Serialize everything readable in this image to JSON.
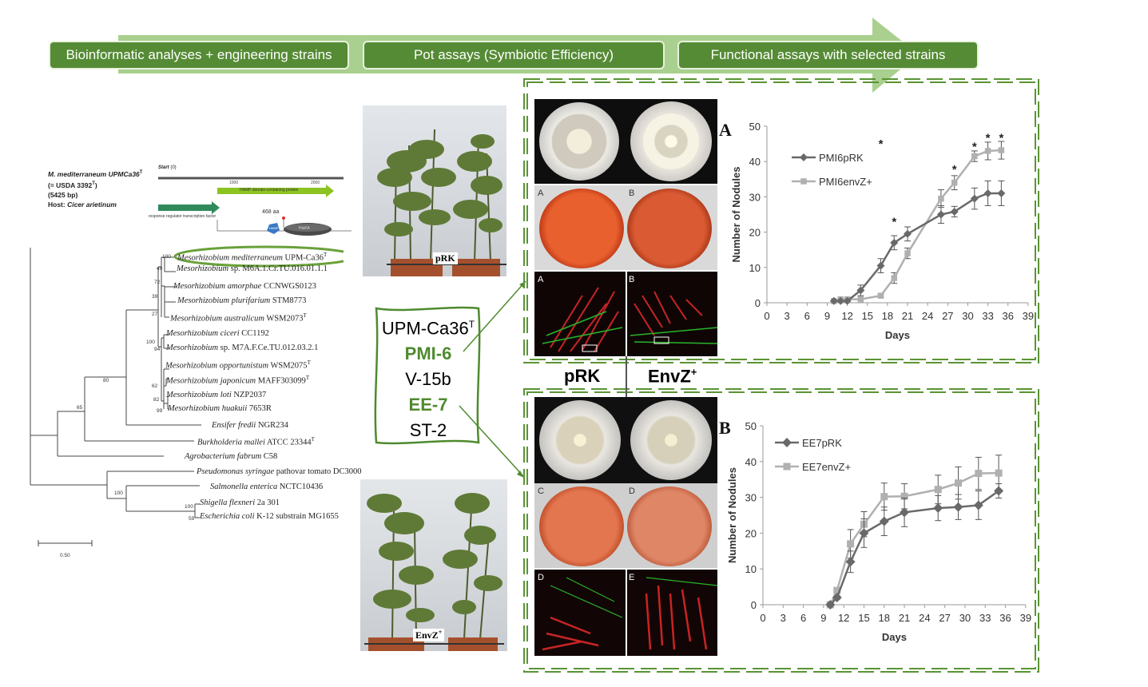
{
  "banner": {
    "steps": [
      "Bioinformatic analyses + engineering strains",
      "Pot assays (Symbiotic Efficiency)",
      "Functional assays with selected strains"
    ],
    "arrow_color": "#a9d08e",
    "box_color": "#558b35"
  },
  "genome_info": {
    "organism": "M. mediterraneum UPMCa36",
    "organism_sup": "T",
    "usda": "(= USDA 3392",
    "usda_sup": "T",
    "usda_end": ")",
    "size": "(5425 bp)",
    "host_label": "Host: ",
    "host": "Cicer arietinum",
    "start_label": "Start",
    "start_value": "(0)",
    "tick_1000": "1000",
    "tick_2000": "2000",
    "hamp_label": "HAMP domain-containing protein",
    "rr_label": "response regulator transcription factor",
    "aa_label": "468 aa",
    "hamp_box": "HAMP",
    "hisk_label": "HisKA"
  },
  "tree": {
    "taxa": [
      {
        "genus": "Mesorhizobium",
        "rest": "mediterraneum",
        "suffix": "UPM-Ca36",
        "sup": "T"
      },
      {
        "genus": "Mesorhizobium",
        "rest": "",
        "suffix": "sp. M6A.1.Cr.TU.016.01.1.1",
        "sup": ""
      },
      {
        "genus": "Mesorhizobium",
        "rest": "amorphae",
        "suffix": "CCNWGS0123",
        "sup": ""
      },
      {
        "genus": "Mesorhizobium",
        "rest": "plurifarium",
        "suffix": "STM8773",
        "sup": ""
      },
      {
        "genus": "Mesorhizobium",
        "rest": "australicum",
        "suffix": "WSM2073",
        "sup": "T"
      },
      {
        "genus": "Mesorhizobium",
        "rest": "ciceri",
        "suffix": "CC1192",
        "sup": ""
      },
      {
        "genus": "Mesorhizobium",
        "rest": "",
        "suffix": "sp. M7A.F.Ce.TU.012.03.2.1",
        "sup": ""
      },
      {
        "genus": "Mesorhizobium",
        "rest": "opportunistum",
        "suffix": "WSM2075",
        "sup": "T"
      },
      {
        "genus": "Mesorhizobium",
        "rest": "japonicum",
        "suffix": "MAFF303099",
        "sup": "T"
      },
      {
        "genus": "Mesorhizobium",
        "rest": "loti",
        "suffix": "NZP2037",
        "sup": ""
      },
      {
        "genus": "Mesorhizobium",
        "rest": "huakuii",
        "suffix": "7653R",
        "sup": ""
      },
      {
        "genus": "Ensifer",
        "rest": "fredii",
        "suffix": "NGR234",
        "sup": ""
      },
      {
        "genus": "Burkholderia",
        "rest": "mallei",
        "suffix": "ATCC 23344",
        "sup": "T"
      },
      {
        "genus": "Agrobacterium",
        "rest": "fabrum",
        "suffix": "C58",
        "sup": ""
      },
      {
        "genus": "Pseudomonas",
        "rest": "syringae",
        "suffix": "pathovar tomato DC3000",
        "sup": ""
      },
      {
        "genus": "Salmonella",
        "rest": "enterica",
        "suffix": "NCTC10436",
        "sup": ""
      },
      {
        "genus": "Shigella",
        "rest": "flexneri",
        "suffix": "2a 301",
        "sup": ""
      },
      {
        "genus": "Escherichia",
        "rest": "coli",
        "suffix": "K-12 substrain MG1655",
        "sup": ""
      }
    ],
    "bootstraps": [
      "100",
      "49",
      "72",
      "39",
      "27",
      "100",
      "94",
      "62",
      "82",
      "99",
      "80",
      "65",
      "100",
      "100",
      "59"
    ],
    "scale": "0.50"
  },
  "pot_photos": {
    "top_label": "pRK",
    "bottom_label": "EnvZ",
    "bottom_sup": "+"
  },
  "strains": {
    "items": [
      {
        "name": "UPM-Ca36",
        "sup": "T",
        "highlight": false
      },
      {
        "name": "PMI-6",
        "sup": "",
        "highlight": true
      },
      {
        "name": "V-15b",
        "sup": "",
        "highlight": false
      },
      {
        "name": "EE-7",
        "sup": "",
        "highlight": true
      },
      {
        "name": "ST-2",
        "sup": "",
        "highlight": false
      }
    ],
    "highlight_color": "#4f8a2f"
  },
  "plates": {
    "col_left": "pRK",
    "col_right": "EnvZ",
    "col_right_sup": "+",
    "panel_letters_top": [
      "A",
      "B"
    ],
    "panel_letters_conf_top": [
      "A",
      "B"
    ],
    "panel_letters_bottom": [
      "C",
      "D"
    ],
    "panel_letters_conf_bottom": [
      "D",
      "E"
    ]
  },
  "chart_data": [
    {
      "panel": "A",
      "type": "line",
      "xlabel": "Days",
      "ylabel": "Number of Nodules",
      "xlim": [
        0,
        39
      ],
      "ylim": [
        0,
        50
      ],
      "xticks": [
        0,
        3,
        6,
        9,
        12,
        15,
        18,
        21,
        24,
        27,
        30,
        33,
        36,
        39
      ],
      "yticks": [
        0,
        10,
        20,
        30,
        40,
        50
      ],
      "legend_position": "top-left",
      "series": [
        {
          "name": "PMI6pRK",
          "color": "#696969",
          "marker": "diamond",
          "x": [
            10,
            11,
            12,
            14,
            17,
            19,
            21,
            26,
            28,
            31,
            33,
            35
          ],
          "y": [
            0.5,
            0.5,
            0.5,
            3.5,
            10.5,
            17,
            19.5,
            25,
            25.8,
            29.5,
            31,
            31
          ],
          "err": [
            0,
            0,
            0,
            1.5,
            2,
            2,
            2,
            2.5,
            1.5,
            3,
            3.5,
            3.5
          ]
        },
        {
          "name": "PMI6envZ+",
          "color": "#b0b0b0",
          "marker": "square",
          "x": [
            10,
            11,
            12,
            14,
            17,
            19,
            21,
            26,
            28,
            31,
            33,
            35
          ],
          "y": [
            0.5,
            1,
            1,
            1,
            2,
            7,
            14,
            29.5,
            34,
            41.5,
            43,
            43.2
          ],
          "err": [
            0,
            0,
            0,
            0,
            0.5,
            1.5,
            1.5,
            2.5,
            2,
            1.5,
            2.5,
            2.5
          ]
        }
      ],
      "significance": {
        "x": [
          17,
          19,
          28,
          31,
          33,
          35
        ],
        "y": [
          45.3,
          23.2,
          38,
          44.5,
          47,
          47
        ],
        "label": "*"
      }
    },
    {
      "panel": "B",
      "type": "line",
      "xlabel": "Days",
      "ylabel": "Number of Nodules",
      "xlim": [
        0,
        39
      ],
      "ylim": [
        0,
        50
      ],
      "xticks": [
        0,
        3,
        6,
        9,
        12,
        15,
        18,
        21,
        24,
        27,
        30,
        33,
        36,
        39
      ],
      "yticks": [
        0,
        10,
        20,
        30,
        40,
        50
      ],
      "legend_position": "top-left",
      "series": [
        {
          "name": "EE7pRK",
          "color": "#696969",
          "marker": "diamond",
          "x": [
            10,
            11,
            13,
            15,
            18,
            21,
            26,
            29,
            32,
            35
          ],
          "y": [
            0,
            2,
            12,
            20,
            23.3,
            25.8,
            27,
            27.3,
            27.8,
            31.8
          ],
          "err": [
            0,
            0.5,
            3,
            4,
            4,
            4,
            3.5,
            3.5,
            4,
            2
          ]
        },
        {
          "name": "EE7envZ+",
          "color": "#b0b0b0",
          "marker": "square",
          "x": [
            10,
            11,
            13,
            15,
            18,
            21,
            26,
            29,
            32,
            35
          ],
          "y": [
            0,
            4,
            17,
            22.5,
            30.2,
            30.3,
            32.2,
            34,
            36.7,
            36.8
          ],
          "err": [
            0,
            0.5,
            4,
            3.5,
            3.8,
            3.5,
            4,
            4.5,
            4.5,
            5
          ]
        }
      ]
    }
  ]
}
